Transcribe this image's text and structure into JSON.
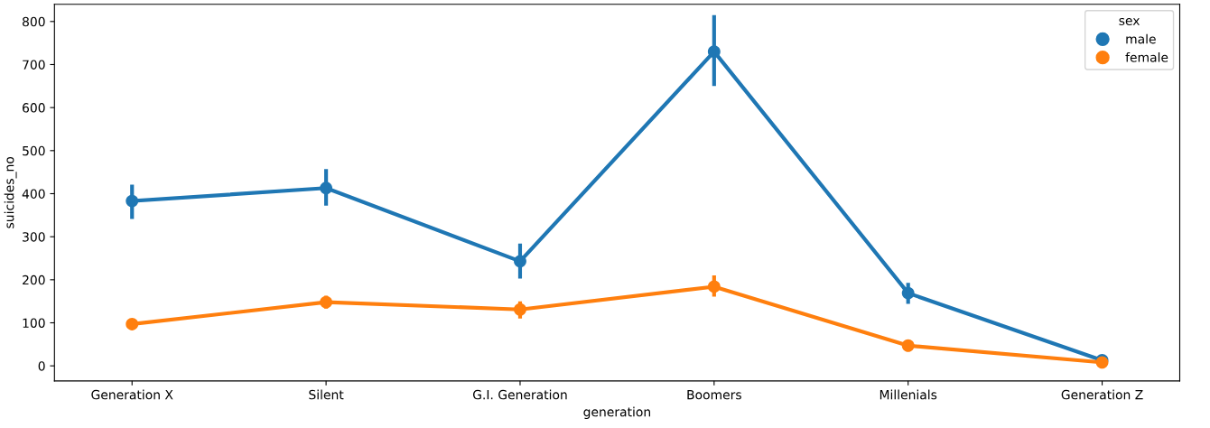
{
  "chart_data": {
    "type": "line",
    "xlabel": "generation",
    "ylabel": "suicides_no",
    "legend_title": "sex",
    "categories": [
      "Generation X",
      "Silent",
      "G.I. Generation",
      "Boomers",
      "Millenials",
      "Generation Z"
    ],
    "series": [
      {
        "name": "male",
        "color": "#1f77b4",
        "values": [
          383,
          413,
          243,
          730,
          169,
          13
        ],
        "errors": [
          [
            341,
            421
          ],
          [
            372,
            457
          ],
          [
            203,
            284
          ],
          [
            650,
            815
          ],
          [
            144,
            193
          ],
          null
        ]
      },
      {
        "name": "female",
        "color": "#ff7f0e",
        "values": [
          97,
          148,
          131,
          184,
          47,
          8
        ],
        "errors": [
          null,
          [
            133,
            163
          ],
          [
            110,
            150
          ],
          [
            161,
            210
          ],
          null,
          null
        ]
      }
    ],
    "ylim": [
      -35,
      840
    ],
    "yticks": [
      0,
      100,
      200,
      300,
      400,
      500,
      600,
      700,
      800
    ],
    "marker": "circle",
    "line_style": "solid",
    "legend": "top right",
    "grid": false
  }
}
